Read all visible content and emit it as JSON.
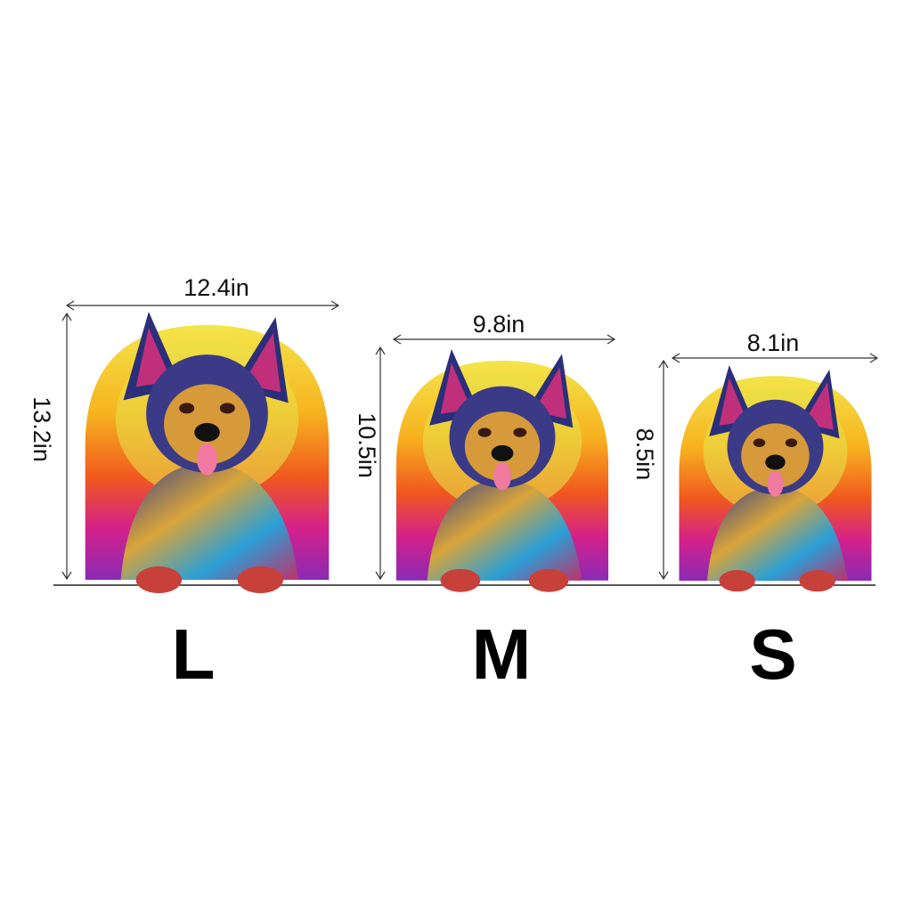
{
  "sizes": [
    {
      "label": "L",
      "width": "12.4in",
      "height": "13.2in"
    },
    {
      "label": "M",
      "width": "9.8in",
      "height": "10.5in"
    },
    {
      "label": "S",
      "width": "8.1in",
      "height": "8.5in"
    }
  ]
}
